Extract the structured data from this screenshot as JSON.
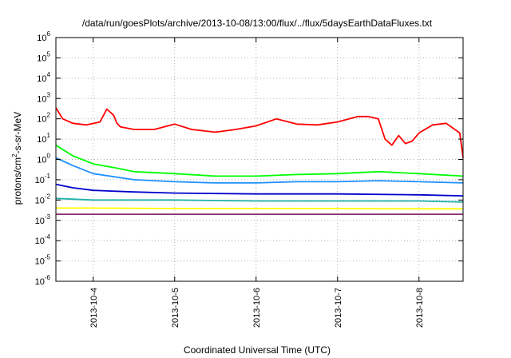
{
  "chart_data": {
    "type": "line",
    "title": "/data/run/goesPlots/archive/2013-10-08/13:00/flux/../flux/5daysEarthDataFluxes.txt",
    "xlabel": "Coordinated Universal Time (UTC)",
    "ylabel": {
      "prefix": "protons/cm",
      "sup": "2",
      "suffix": "-s-sr-MeV"
    },
    "yscale": "log",
    "ylim": [
      1e-06,
      1000000.0
    ],
    "y_ticks": [
      {
        "value": 1e-06,
        "base": "10",
        "exp": "-6"
      },
      {
        "value": 1e-05,
        "base": "10",
        "exp": "-5"
      },
      {
        "value": 0.0001,
        "base": "10",
        "exp": "-4"
      },
      {
        "value": 0.001,
        "base": "10",
        "exp": "-3"
      },
      {
        "value": 0.01,
        "base": "10",
        "exp": "-2"
      },
      {
        "value": 0.1,
        "base": "10",
        "exp": "-1"
      },
      {
        "value": 1,
        "base": "10",
        "exp": "0"
      },
      {
        "value": 10,
        "base": "10",
        "exp": "1"
      },
      {
        "value": 100,
        "base": "10",
        "exp": "2"
      },
      {
        "value": 1000,
        "base": "10",
        "exp": "3"
      },
      {
        "value": 10000,
        "base": "10",
        "exp": "4"
      },
      {
        "value": 100000,
        "base": "10",
        "exp": "5"
      },
      {
        "value": 1000000,
        "base": "10",
        "exp": "6"
      }
    ],
    "xlim": [
      "2013-10-03T13:00",
      "2013-10-08T13:00"
    ],
    "x_ticks": [
      "2013-10-4",
      "2013-10-5",
      "2013-10-6",
      "2013-10-7",
      "2013-10-8"
    ],
    "grid": true,
    "legend": "none",
    "series": [
      {
        "color": "#ff0000",
        "x": [
          "2013-10-03T13:00",
          "2013-10-03T15:00",
          "2013-10-03T18:00",
          "2013-10-03T22:00",
          "2013-10-04T02:00",
          "2013-10-04T04:00",
          "2013-10-04T06:00",
          "2013-10-04T07:00",
          "2013-10-04T08:00",
          "2013-10-04T12:00",
          "2013-10-04T18:00",
          "2013-10-05T00:00",
          "2013-10-05T05:00",
          "2013-10-05T12:00",
          "2013-10-05T18:00",
          "2013-10-06T00:00",
          "2013-10-06T06:00",
          "2013-10-06T12:00",
          "2013-10-06T18:00",
          "2013-10-07T00:00",
          "2013-10-07T06:00",
          "2013-10-07T09:00",
          "2013-10-07T12:00",
          "2013-10-07T14:00",
          "2013-10-07T16:00",
          "2013-10-07T18:00",
          "2013-10-07T20:00",
          "2013-10-07T22:00",
          "2013-10-08T00:00",
          "2013-10-08T04:00",
          "2013-10-08T08:00",
          "2013-10-08T12:00",
          "2013-10-08T13:00"
        ],
        "y": [
          350,
          100,
          60,
          50,
          70,
          300,
          150,
          60,
          40,
          30,
          30,
          55,
          30,
          22,
          30,
          45,
          100,
          55,
          50,
          70,
          130,
          130,
          100,
          10,
          5,
          15,
          6,
          8,
          20,
          50,
          60,
          20,
          1.2
        ]
      },
      {
        "color": "#00ff00",
        "x": [
          "2013-10-03T13:00",
          "2013-10-03T18:00",
          "2013-10-04T00:00",
          "2013-10-04T06:00",
          "2013-10-04T12:00",
          "2013-10-05T00:00",
          "2013-10-05T12:00",
          "2013-10-06T00:00",
          "2013-10-06T12:00",
          "2013-10-07T00:00",
          "2013-10-07T12:00",
          "2013-10-08T00:00",
          "2013-10-08T13:00"
        ],
        "y": [
          5,
          1.5,
          0.6,
          0.4,
          0.25,
          0.2,
          0.15,
          0.15,
          0.18,
          0.2,
          0.25,
          0.2,
          0.15
        ]
      },
      {
        "color": "#1e90ff",
        "x": [
          "2013-10-03T13:00",
          "2013-10-03T18:00",
          "2013-10-04T00:00",
          "2013-10-04T12:00",
          "2013-10-05T00:00",
          "2013-10-05T12:00",
          "2013-10-06T00:00",
          "2013-10-06T12:00",
          "2013-10-07T00:00",
          "2013-10-07T12:00",
          "2013-10-08T00:00",
          "2013-10-08T13:00"
        ],
        "y": [
          1.2,
          0.5,
          0.2,
          0.1,
          0.08,
          0.07,
          0.07,
          0.08,
          0.08,
          0.09,
          0.08,
          0.07
        ]
      },
      {
        "color": "#0000cd",
        "x": [
          "2013-10-03T13:00",
          "2013-10-03T18:00",
          "2013-10-04T00:00",
          "2013-10-04T12:00",
          "2013-10-05T00:00",
          "2013-10-06T00:00",
          "2013-10-07T00:00",
          "2013-10-08T00:00",
          "2013-10-08T13:00"
        ],
        "y": [
          0.06,
          0.04,
          0.03,
          0.025,
          0.022,
          0.02,
          0.02,
          0.018,
          0.016
        ]
      },
      {
        "color": "#20b2aa",
        "x": [
          "2013-10-03T13:00",
          "2013-10-04T00:00",
          "2013-10-05T00:00",
          "2013-10-06T00:00",
          "2013-10-07T00:00",
          "2013-10-08T00:00",
          "2013-10-08T13:00"
        ],
        "y": [
          0.012,
          0.01,
          0.01,
          0.009,
          0.009,
          0.009,
          0.008
        ]
      },
      {
        "color": "#ffff00",
        "x": [
          "2013-10-03T13:00",
          "2013-10-04T00:00",
          "2013-10-05T00:00",
          "2013-10-06T00:00",
          "2013-10-07T00:00",
          "2013-10-08T00:00",
          "2013-10-08T13:00"
        ],
        "y": [
          0.004,
          0.004,
          0.0038,
          0.0038,
          0.0038,
          0.0037,
          0.0037
        ]
      },
      {
        "color": "#8b2f6f",
        "x": [
          "2013-10-03T13:00",
          "2013-10-04T00:00",
          "2013-10-05T00:00",
          "2013-10-06T00:00",
          "2013-10-07T00:00",
          "2013-10-08T00:00",
          "2013-10-08T13:00"
        ],
        "y": [
          0.002,
          0.002,
          0.002,
          0.002,
          0.002,
          0.002,
          0.002
        ]
      }
    ]
  }
}
